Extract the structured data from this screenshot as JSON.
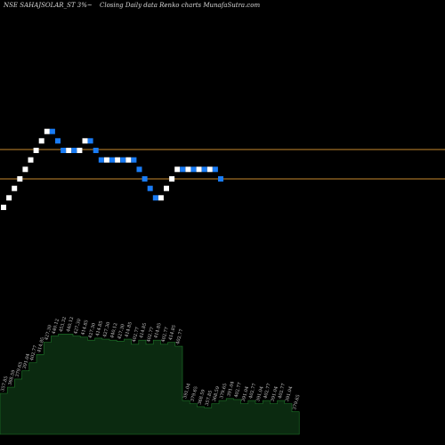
{
  "header": {
    "ticker": "NSE SAHAJSOLAR_ST 3%~",
    "description": "Closing Daily data  Renko  charts MunafaSutra.com"
  },
  "chart_data": {
    "type": "renko",
    "brick_percent": 3,
    "bricks": [
      {
        "dir": "up",
        "value": 357.85
      },
      {
        "dir": "up",
        "value": 368.59
      },
      {
        "dir": "up",
        "value": 379.65
      },
      {
        "dir": "up",
        "value": 391.04
      },
      {
        "dir": "up",
        "value": 402.77
      },
      {
        "dir": "up",
        "value": 414.85
      },
      {
        "dir": "up",
        "value": 427.3
      },
      {
        "dir": "up",
        "value": 440.12
      },
      {
        "dir": "up",
        "value": 453.32
      },
      {
        "dir": "down",
        "value": 440.12
      },
      {
        "dir": "down",
        "value": 427.3
      },
      {
        "dir": "down",
        "value": 414.85
      },
      {
        "dir": "up",
        "value": 427.3
      },
      {
        "dir": "down",
        "value": 414.85
      },
      {
        "dir": "up",
        "value": 427.3
      },
      {
        "dir": "up",
        "value": 440.12
      },
      {
        "dir": "down",
        "value": 427.3
      },
      {
        "dir": "down",
        "value": 414.85
      },
      {
        "dir": "down",
        "value": 402.77
      },
      {
        "dir": "up",
        "value": 414.85
      },
      {
        "dir": "down",
        "value": 402.77
      },
      {
        "dir": "up",
        "value": 414.85
      },
      {
        "dir": "down",
        "value": 402.77
      },
      {
        "dir": "up",
        "value": 414.85
      },
      {
        "dir": "down",
        "value": 402.77
      },
      {
        "dir": "down",
        "value": 391.04
      },
      {
        "dir": "down",
        "value": 379.65
      },
      {
        "dir": "down",
        "value": 368.59
      },
      {
        "dir": "down",
        "value": 357.85
      },
      {
        "dir": "up",
        "value": 368.59
      },
      {
        "dir": "up",
        "value": 379.65
      },
      {
        "dir": "up",
        "value": 391.04
      },
      {
        "dir": "up",
        "value": 402.77
      },
      {
        "dir": "down",
        "value": 391.04
      },
      {
        "dir": "up",
        "value": 402.77
      },
      {
        "dir": "down",
        "value": 391.04
      },
      {
        "dir": "up",
        "value": 402.77
      },
      {
        "dir": "down",
        "value": 391.04
      },
      {
        "dir": "up",
        "value": 402.77
      },
      {
        "dir": "down",
        "value": 391.04
      },
      {
        "dir": "down",
        "value": 379.65
      }
    ],
    "price_levels": [
      427.3,
      391.04
    ],
    "volume_labels": [
      "357.85",
      "368.59",
      "379.65",
      "391.04",
      "402.77",
      "414.85",
      "427.30",
      "440.12",
      "453.32",
      "440.12",
      "427.30",
      "414.85",
      "427.30",
      "414.85",
      "427.30",
      "440.12",
      "427.30",
      "414.85",
      "402.77",
      "414.85",
      "402.77",
      "414.85",
      "402.77",
      "414.85",
      "402.77",
      "391.04",
      "379.65",
      "368.59",
      "357.85",
      "368.59",
      "379.65",
      "391.04",
      "402.77",
      "391.04",
      "402.77",
      "391.04",
      "402.77",
      "391.04",
      "402.77",
      "391.04",
      "379.65"
    ],
    "volume_profile": [
      0.4,
      0.46,
      0.54,
      0.62,
      0.7,
      0.78,
      0.9,
      0.96,
      0.98,
      0.98,
      0.96,
      0.95,
      0.92,
      0.94,
      0.93,
      0.92,
      0.91,
      0.93,
      0.88,
      0.92,
      0.88,
      0.92,
      0.88,
      0.9,
      0.86,
      0.33,
      0.3,
      0.27,
      0.26,
      0.3,
      0.33,
      0.35,
      0.34,
      0.3,
      0.33,
      0.3,
      0.33,
      0.3,
      0.33,
      0.3,
      0.22
    ],
    "colors": {
      "background": "#000000",
      "up_brick": "#ffffff",
      "down_brick": "#1a7cf5",
      "level_line": "#c88a2e",
      "volume_fill": "#0b2a10",
      "volume_stroke": "#1f7a2a",
      "label_text": "#cfcfcf"
    }
  }
}
